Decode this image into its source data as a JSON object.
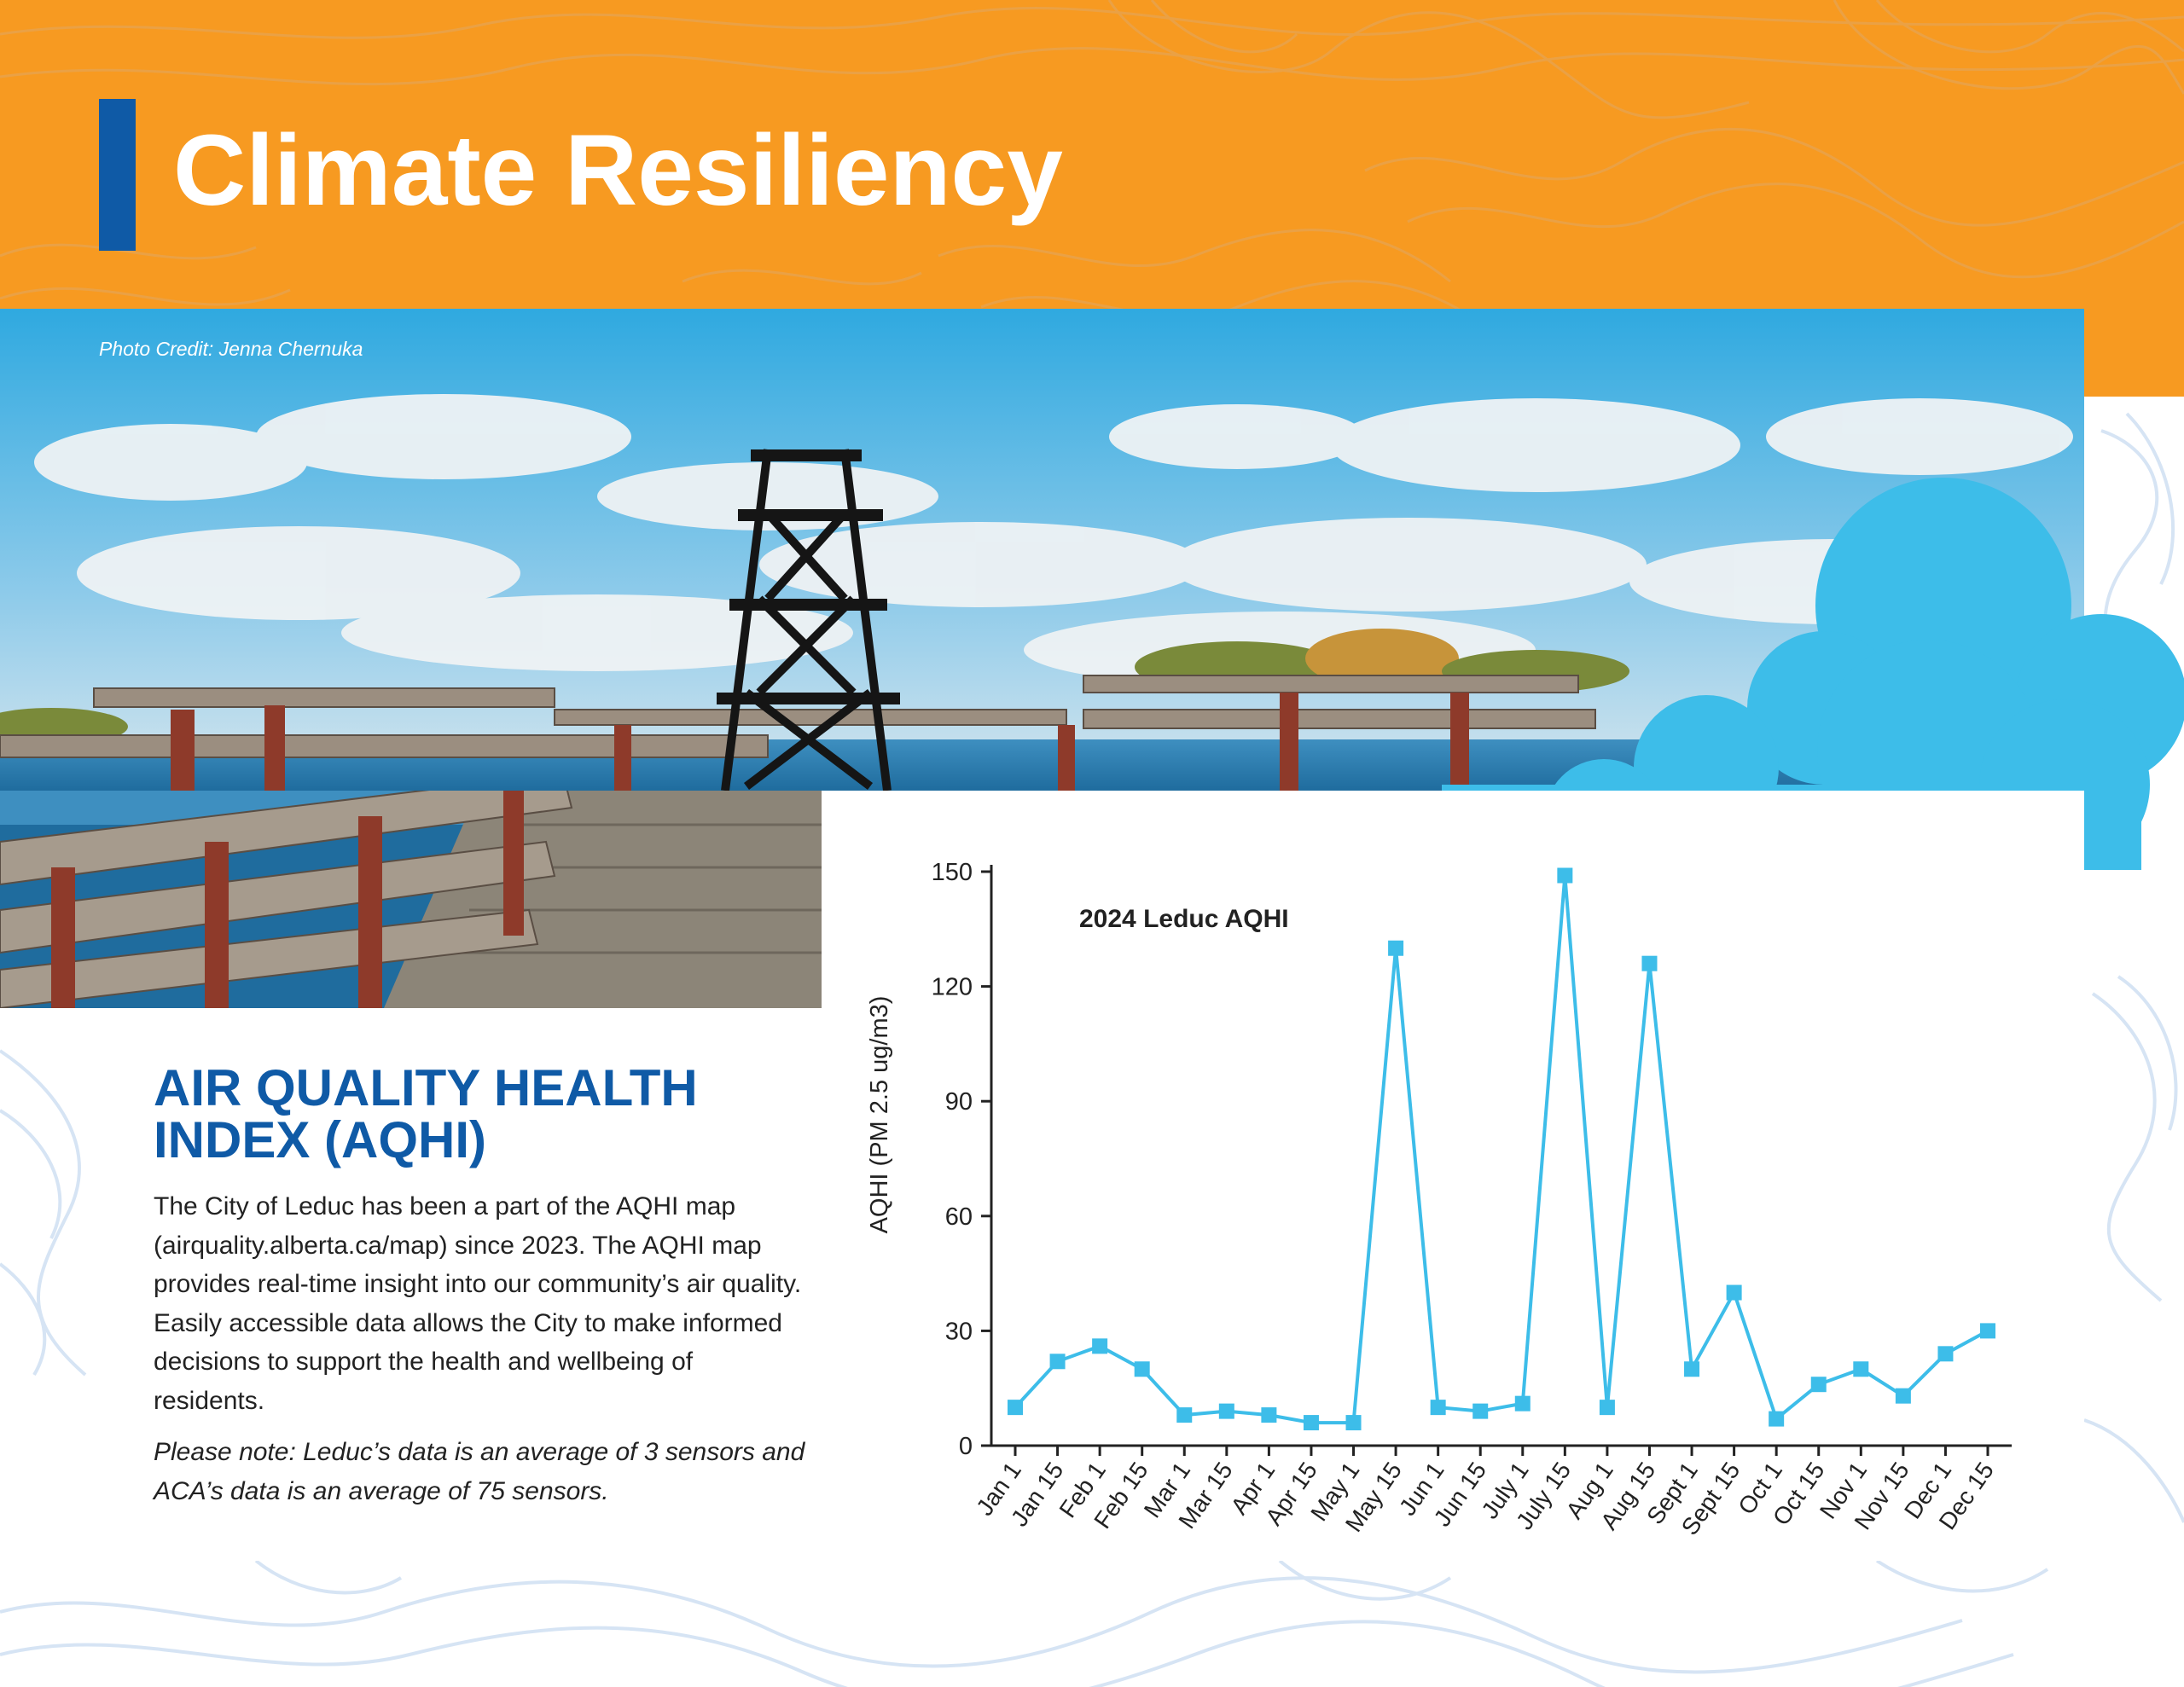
{
  "header": {
    "title": "Climate Resiliency",
    "accent_color": "#0F5AA6",
    "band_color": "#F79A21"
  },
  "photo": {
    "credit": "Photo Credit: Jenna Chernuka"
  },
  "section": {
    "heading_line1": "AIR QUALITY HEALTH",
    "heading_line2": "INDEX (AQHI)",
    "body": "The City of Leduc has been a part of the AQHI map (airquality.alberta.ca/map) since 2023. The AQHI map provides real-time insight into our community’s air quality. Easily accessible data allows the City to make informed decisions to support the health and wellbeing of residents.",
    "note": "Please note: Leduc’s data is an average of 3 sensors and ACA’s data is an average of 75 sensors.",
    "heading_color": "#0F5AA6"
  },
  "chart_data": {
    "type": "line",
    "title": "2024 Leduc AQHI",
    "xlabel": "",
    "ylabel": "AQHI (PM 2.5 ug/m3)",
    "ylim": [
      0,
      150
    ],
    "yticks": [
      0,
      30,
      60,
      90,
      120,
      150
    ],
    "categories": [
      "Jan 1",
      "Jan 15",
      "Feb 1",
      "Feb 15",
      "Mar 1",
      "Mar 15",
      "Apr 1",
      "Apr 15",
      "May 1",
      "May 15",
      "Jun 1",
      "Jun 15",
      "July 1",
      "July 15",
      "Aug 1",
      "Aug 15",
      "Sept 1",
      "Sept 15",
      "Oct 1",
      "Oct 15",
      "Nov 1",
      "Nov 15",
      "Dec 1",
      "Dec 15"
    ],
    "values": [
      10,
      22,
      26,
      20,
      8,
      9,
      8,
      6,
      6,
      130,
      10,
      9,
      11,
      149,
      10,
      126,
      20,
      40,
      7,
      16,
      20,
      13,
      24,
      30
    ],
    "grid": false,
    "legend": "none",
    "series_color": "#3DBDE9"
  }
}
